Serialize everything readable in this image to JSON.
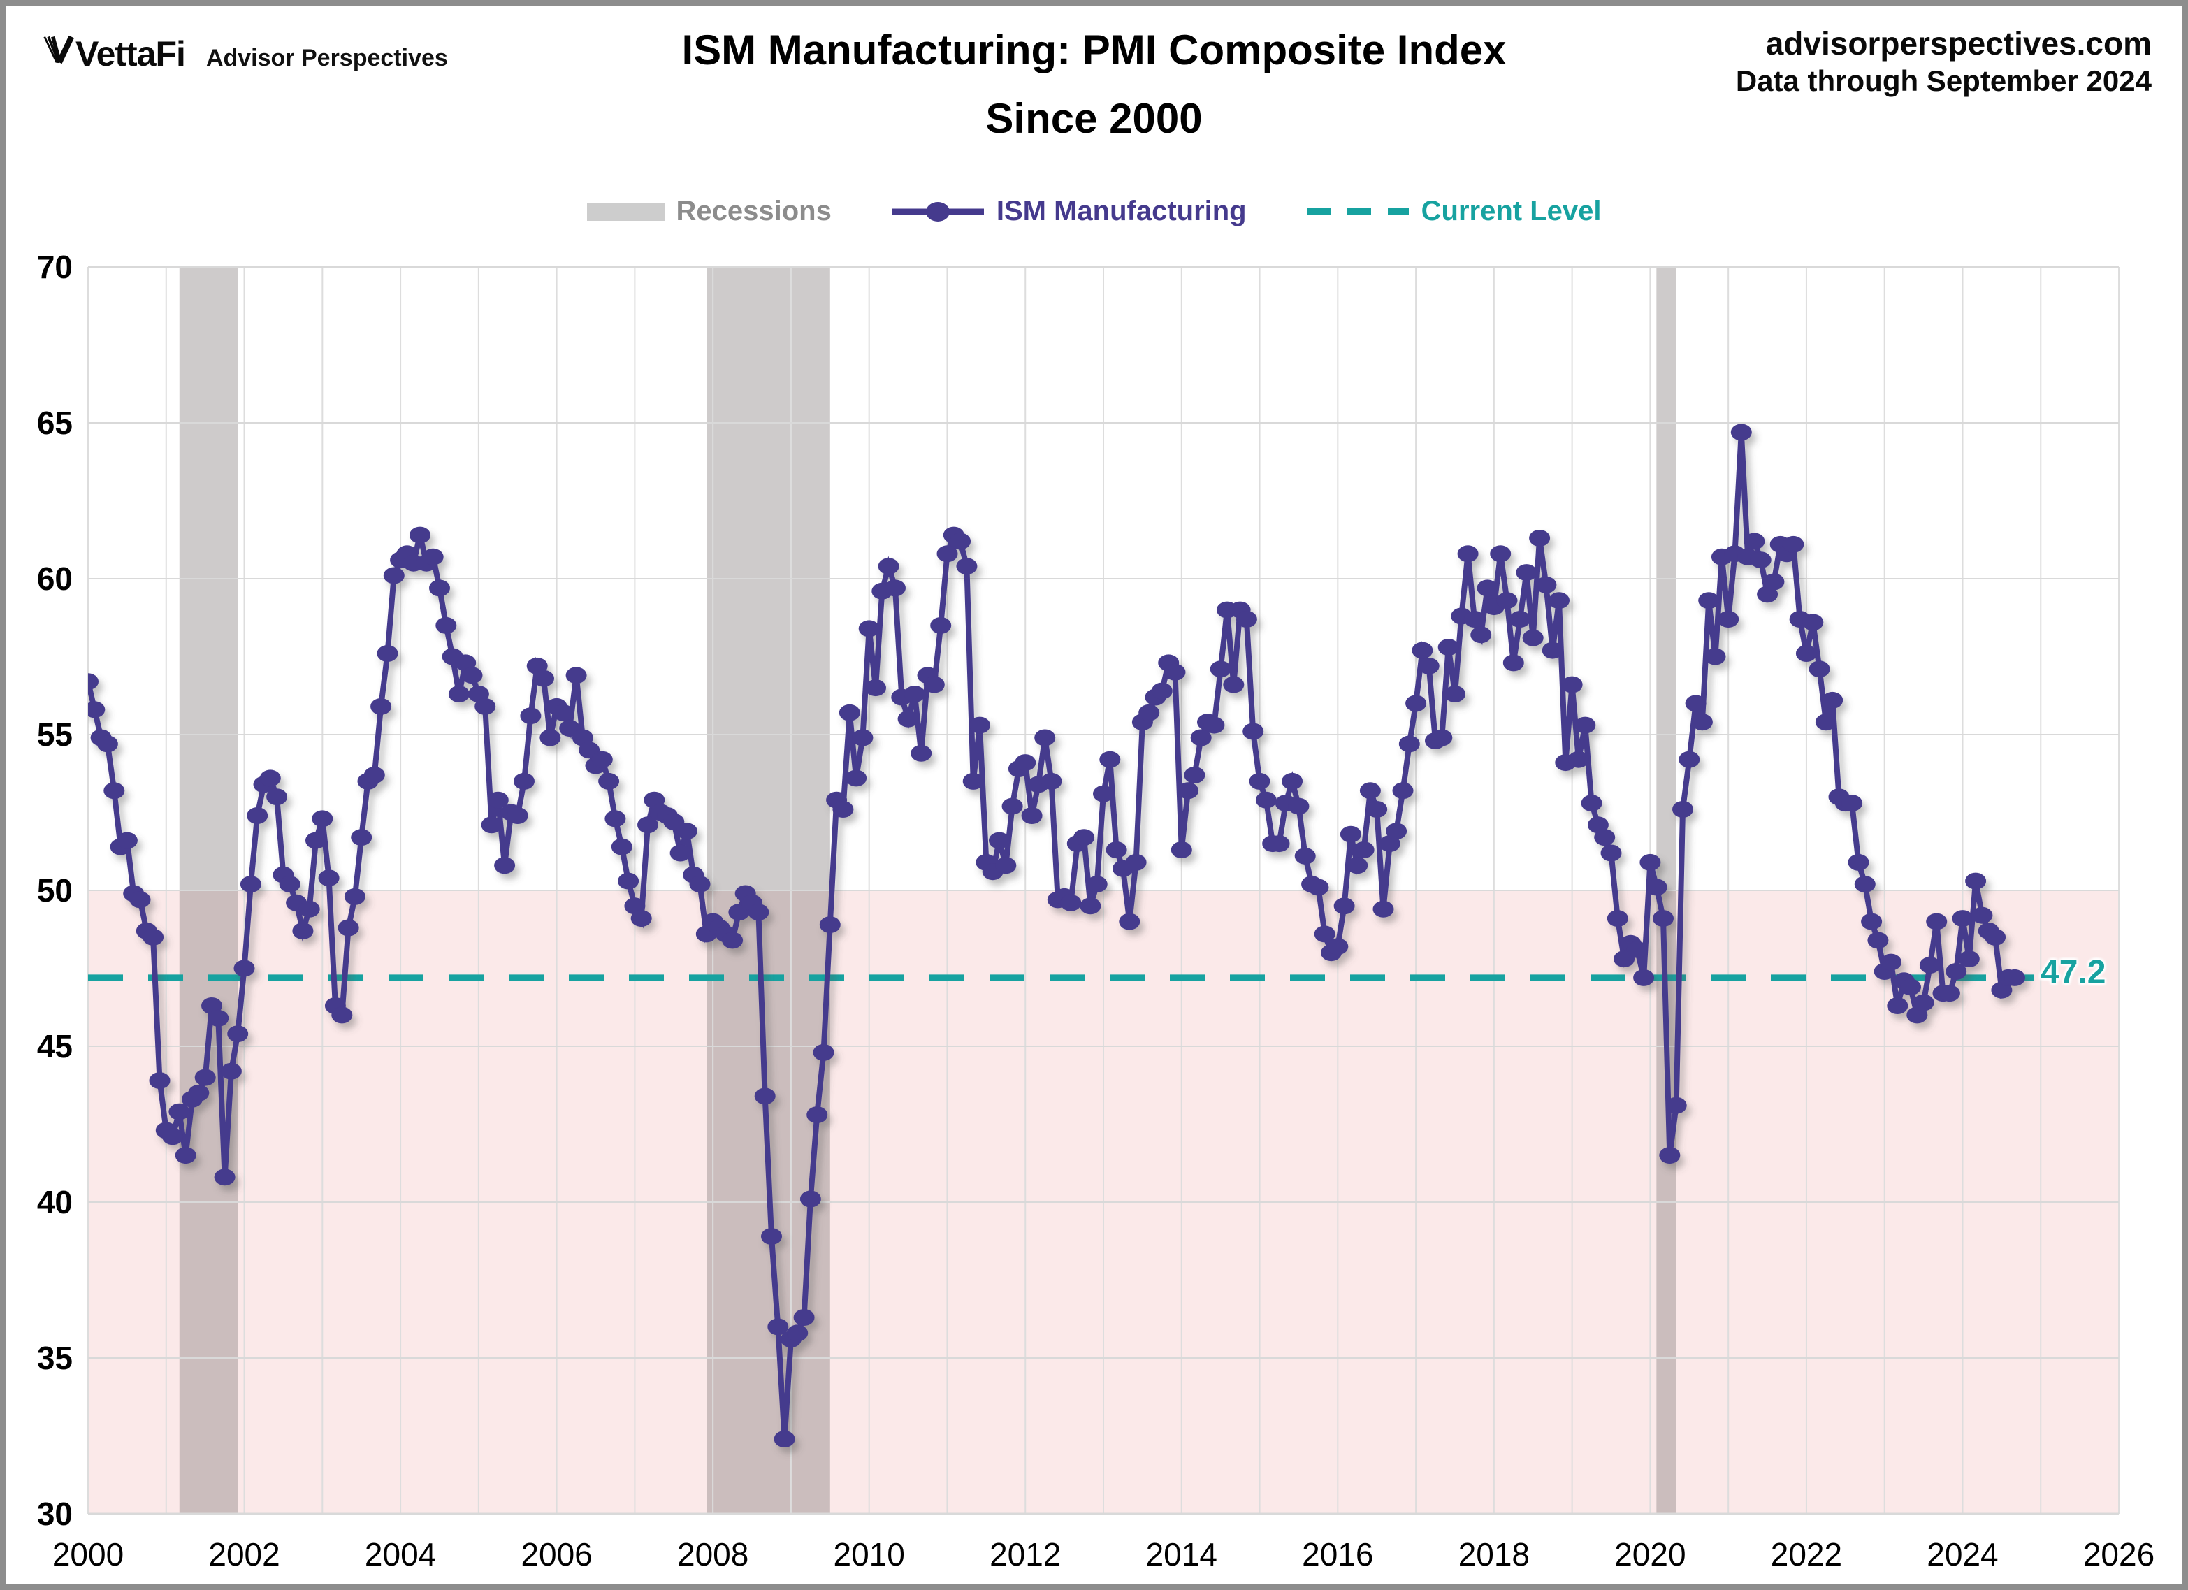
{
  "header": {
    "logo_text": "VettaFi",
    "logo_subtext": "Advisor Perspectives",
    "title_line1": "ISM Manufacturing: PMI Composite Index",
    "title_line2": "Since 2000",
    "site": "advisorperspectives.com",
    "data_through": "Data through September 2024"
  },
  "legend": {
    "recessions_label": "Recessions",
    "series_label": "ISM Manufacturing",
    "current_level_label": "Current Level"
  },
  "chart_data": {
    "type": "line",
    "title": "ISM Manufacturing: PMI Composite Index Since 2000",
    "xlabel": "",
    "ylabel": "",
    "x_start_year": 2000,
    "x_end_year": 2026,
    "first_month": "2000-01",
    "last_month": "2024-09",
    "ylim": [
      30,
      70
    ],
    "y_ticks": [
      30,
      35,
      40,
      45,
      50,
      55,
      60,
      65,
      70
    ],
    "x_ticks": [
      2000,
      2002,
      2004,
      2006,
      2008,
      2010,
      2012,
      2014,
      2016,
      2018,
      2020,
      2022,
      2024,
      2026
    ],
    "grid": true,
    "below_50_band": [
      30,
      50
    ],
    "current_level": 47.2,
    "current_level_label": "47.2",
    "recessions": [
      [
        2001.17,
        2001.92
      ],
      [
        2007.92,
        2009.5
      ],
      [
        2020.08,
        2020.33
      ]
    ],
    "series": [
      {
        "name": "ISM Manufacturing",
        "monthly_values": [
          56.7,
          55.8,
          54.9,
          54.7,
          53.2,
          51.4,
          51.6,
          49.9,
          49.7,
          48.7,
          48.5,
          43.9,
          42.3,
          42.1,
          42.9,
          41.5,
          43.3,
          43.5,
          44.0,
          46.3,
          45.9,
          40.8,
          44.2,
          45.4,
          47.5,
          50.2,
          52.4,
          53.4,
          53.6,
          53.0,
          50.5,
          50.2,
          49.6,
          48.7,
          49.4,
          51.6,
          52.3,
          50.4,
          46.3,
          46.0,
          48.8,
          49.8,
          51.7,
          53.5,
          53.7,
          55.9,
          57.6,
          60.1,
          60.6,
          60.8,
          60.5,
          61.4,
          60.5,
          60.7,
          59.7,
          58.5,
          57.5,
          56.3,
          57.3,
          56.9,
          56.3,
          55.9,
          52.1,
          52.9,
          50.8,
          52.5,
          52.4,
          53.5,
          55.6,
          57.2,
          56.8,
          54.9,
          55.9,
          55.7,
          55.2,
          56.9,
          54.9,
          54.5,
          54.0,
          54.2,
          53.5,
          52.3,
          51.4,
          50.3,
          49.5,
          49.1,
          52.1,
          52.9,
          52.5,
          52.4,
          52.2,
          51.2,
          51.9,
          50.5,
          50.2,
          48.6,
          49.0,
          48.8,
          48.6,
          48.4,
          49.3,
          49.9,
          49.6,
          49.3,
          43.4,
          38.9,
          36.0,
          32.4,
          35.6,
          35.8,
          36.3,
          40.1,
          42.8,
          44.8,
          48.9,
          52.9,
          52.6,
          55.7,
          53.6,
          54.9,
          58.4,
          56.5,
          59.6,
          60.4,
          59.7,
          56.2,
          55.5,
          56.3,
          54.4,
          56.9,
          56.6,
          58.5,
          60.8,
          61.4,
          61.2,
          60.4,
          53.5,
          55.3,
          50.9,
          50.6,
          51.6,
          50.8,
          52.7,
          53.9,
          54.1,
          52.4,
          53.4,
          54.9,
          53.5,
          49.7,
          49.8,
          49.6,
          51.5,
          51.7,
          49.5,
          50.2,
          53.1,
          54.2,
          51.3,
          50.7,
          49.0,
          50.9,
          55.4,
          55.7,
          56.2,
          56.4,
          57.3,
          57.0,
          51.3,
          53.2,
          53.7,
          54.9,
          55.4,
          55.3,
          57.1,
          59.0,
          56.6,
          59.0,
          58.7,
          55.1,
          53.5,
          52.9,
          51.5,
          51.5,
          52.8,
          53.5,
          52.7,
          51.1,
          50.2,
          50.1,
          48.6,
          48.0,
          48.2,
          49.5,
          51.8,
          50.8,
          51.3,
          53.2,
          52.6,
          49.4,
          51.5,
          51.9,
          53.2,
          54.7,
          56.0,
          57.7,
          57.2,
          54.8,
          54.9,
          57.8,
          56.3,
          58.8,
          60.8,
          58.7,
          58.2,
          59.7,
          59.1,
          60.8,
          59.3,
          57.3,
          58.7,
          60.2,
          58.1,
          61.3,
          59.8,
          57.7,
          59.3,
          54.1,
          56.6,
          54.2,
          55.3,
          52.8,
          52.1,
          51.7,
          51.2,
          49.1,
          47.8,
          48.3,
          48.1,
          47.2,
          50.9,
          50.1,
          49.1,
          41.5,
          43.1,
          52.6,
          54.2,
          56.0,
          55.4,
          59.3,
          57.5,
          60.7,
          58.7,
          60.8,
          64.7,
          60.7,
          61.2,
          60.6,
          59.5,
          59.9,
          61.1,
          60.8,
          61.1,
          58.7,
          57.6,
          58.6,
          57.1,
          55.4,
          56.1,
          53.0,
          52.8,
          52.8,
          50.9,
          50.2,
          49.0,
          48.4,
          47.4,
          47.7,
          46.3,
          47.1,
          46.9,
          46.0,
          46.4,
          47.6,
          49.0,
          46.7,
          46.7,
          47.4,
          49.1,
          47.8,
          50.3,
          49.2,
          48.7,
          48.5,
          46.8,
          47.2,
          47.2
        ]
      }
    ],
    "colors": {
      "line": "#453A8D",
      "current_level": "#17A2A0",
      "below_50_band": "#FBE9E9",
      "recession": "rgba(125,118,118,0.38)",
      "grid": "#D9D9D9",
      "grid_vertical": "#DDDDDD",
      "tick_text": "#000000"
    },
    "legend_position": "top"
  }
}
